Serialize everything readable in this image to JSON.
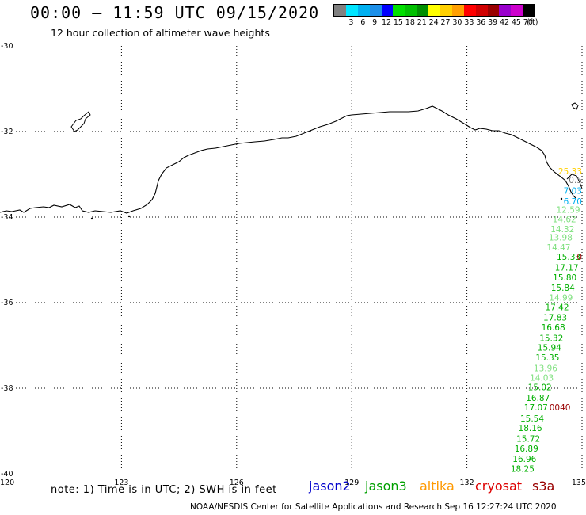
{
  "header": {
    "title": "00:00 – 11:59 UTC 09/15/2020",
    "subtitle": "12 hour collection of altimeter wave heights"
  },
  "color_scale": {
    "unit_label": "(ft)",
    "swatches": [
      {
        "color": "#808080",
        "label": ""
      },
      {
        "color": "#00e5ff",
        "label": "3"
      },
      {
        "color": "#00b0f0",
        "label": "6"
      },
      {
        "color": "#1c8fe8",
        "label": "9"
      },
      {
        "color": "#0000ff",
        "label": "12"
      },
      {
        "color": "#00e000",
        "label": "15"
      },
      {
        "color": "#00c000",
        "label": "18"
      },
      {
        "color": "#008f00",
        "label": "21"
      },
      {
        "color": "#ffff00",
        "label": "24"
      },
      {
        "color": "#ffd000",
        "label": "27"
      },
      {
        "color": "#ff9f00",
        "label": "30"
      },
      {
        "color": "#ff0000",
        "label": "33"
      },
      {
        "color": "#d00000",
        "label": "36"
      },
      {
        "color": "#990000",
        "label": "39"
      },
      {
        "color": "#9900cc",
        "label": "42"
      },
      {
        "color": "#cc00cc",
        "label": "45"
      },
      {
        "color": "#000000",
        "label": "70"
      }
    ]
  },
  "axes": {
    "lat_labels": [
      "-30",
      "-32",
      "-34",
      "-36",
      "-38",
      "-40"
    ],
    "lon_labels": [
      "120",
      "123",
      "126",
      "129",
      "132",
      "135"
    ],
    "lat_range": [
      -40,
      -30
    ],
    "lon_range": [
      120,
      135
    ],
    "grid": "dotted"
  },
  "tracks": [
    {
      "satellite": "jason3",
      "points": [
        {
          "lon": 135.0,
          "lat": -33.0,
          "value": "25.33",
          "color": "#ffd000"
        },
        {
          "lon": 135.0,
          "lat": -33.2,
          "value": "0.5",
          "color": "#777777"
        },
        {
          "lon": 135.0,
          "lat": -33.45,
          "value": "7.03",
          "color": "#00b0f0"
        },
        {
          "lon": 135.0,
          "lat": -33.7,
          "value": "6.70",
          "color": "#00b0f0"
        },
        {
          "lon": 134.95,
          "lat": -33.9,
          "value": "12.59",
          "color": "#7fe07f"
        },
        {
          "lon": 134.85,
          "lat": -34.12,
          "value": "14.62",
          "color": "#7fe07f"
        },
        {
          "lon": 134.8,
          "lat": -34.35,
          "value": "14.32",
          "color": "#7fe07f"
        },
        {
          "lon": 134.75,
          "lat": -34.55,
          "value": "13.98",
          "color": "#7fe07f"
        },
        {
          "lon": 134.7,
          "lat": -34.78,
          "value": "14.47",
          "color": "#7fe07f"
        },
        {
          "lon": 134.65,
          "lat": -35.0,
          "value": "15.33",
          "color": "#00b000"
        },
        {
          "lon": 134.6,
          "lat": -35.25,
          "value": "17.17",
          "color": "#00b000"
        },
        {
          "lon": 134.55,
          "lat": -35.48,
          "value": "15.80",
          "color": "#00b000"
        },
        {
          "lon": 134.5,
          "lat": -35.72,
          "value": "15.84",
          "color": "#00b000"
        },
        {
          "lon": 134.45,
          "lat": -35.95,
          "value": "14.99",
          "color": "#7fe07f"
        },
        {
          "lon": 134.35,
          "lat": -36.18,
          "value": "17.42",
          "color": "#00b000"
        },
        {
          "lon": 134.3,
          "lat": -36.42,
          "value": "17.83",
          "color": "#00b000"
        },
        {
          "lon": 134.25,
          "lat": -36.65,
          "value": "16.68",
          "color": "#00b000"
        },
        {
          "lon": 134.2,
          "lat": -36.9,
          "value": "15.32",
          "color": "#00b000"
        },
        {
          "lon": 134.15,
          "lat": -37.12,
          "value": "15.94",
          "color": "#00b000"
        },
        {
          "lon": 134.1,
          "lat": -37.35,
          "value": "15.35",
          "color": "#00b000"
        },
        {
          "lon": 134.05,
          "lat": -37.6,
          "value": "13.96",
          "color": "#7fe07f"
        },
        {
          "lon": 133.95,
          "lat": -37.82,
          "value": "14.03",
          "color": "#7fe07f"
        },
        {
          "lon": 133.9,
          "lat": -38.05,
          "value": "15.02",
          "color": "#00b000"
        },
        {
          "lon": 133.85,
          "lat": -38.3,
          "value": "16.87",
          "color": "#00b000"
        },
        {
          "lon": 133.8,
          "lat": -38.52,
          "value": "17.07",
          "color": "#00b000"
        },
        {
          "lon": 133.7,
          "lat": -38.78,
          "value": "15.54",
          "color": "#00b000"
        },
        {
          "lon": 133.65,
          "lat": -39.0,
          "value": "18.16",
          "color": "#00b000"
        },
        {
          "lon": 133.6,
          "lat": -39.25,
          "value": "15.72",
          "color": "#00b000"
        },
        {
          "lon": 133.55,
          "lat": -39.48,
          "value": "16.89",
          "color": "#00b000"
        },
        {
          "lon": 133.5,
          "lat": -39.72,
          "value": "16.96",
          "color": "#00b000"
        },
        {
          "lon": 133.45,
          "lat": -39.95,
          "value": "18.25",
          "color": "#00b000"
        }
      ]
    },
    {
      "satellite": "cryosat",
      "points": [
        {
          "lon": 135.0,
          "lat": -35.0,
          "value": "0",
          "color": "#990000"
        },
        {
          "lon": 134.7,
          "lat": -38.52,
          "value": "0040",
          "color": "#990000"
        }
      ]
    }
  ],
  "footer": {
    "note": "note: 1) Time is in UTC; 2) SWH is in feet",
    "legend": [
      {
        "name": "jason2",
        "color": "#0000cc"
      },
      {
        "name": "jason3",
        "color": "#00a000"
      },
      {
        "name": "altika",
        "color": "#ff9900"
      },
      {
        "name": "cryosat",
        "color": "#dd0000"
      },
      {
        "name": "s3a",
        "color": "#990000"
      }
    ],
    "credit": "NOAA/NESDIS Center for Satellite Applications and Research    Sep 16 12:27:24 UTC 2020"
  }
}
